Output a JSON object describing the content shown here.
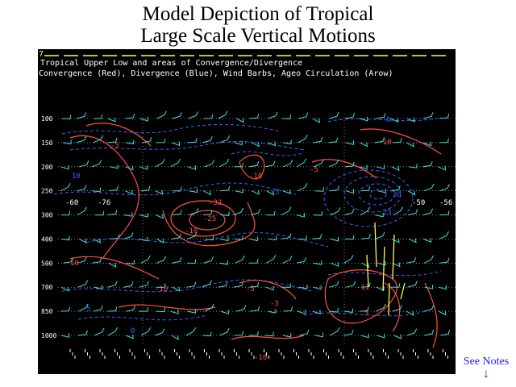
{
  "header": {
    "title_line1": "Model Depiction of Tropical",
    "title_line2": "Large Scale Vertical Motions"
  },
  "panel": {
    "frame_number": "7",
    "subtitle1": "Tropical Upper Low and areas of Convergence/Divergence",
    "subtitle2": "Convergence (Red), Divergence (Blue), Wind Barbs, Ageo Circulation (Arow)",
    "y_levels": [
      "100",
      "150",
      "200",
      "250",
      "300",
      "400",
      "500",
      "700",
      "850",
      "1000"
    ],
    "contour_labels": [
      {
        "text": "10",
        "color": "#4060ff"
      },
      {
        "text": "-5",
        "color": "#ff5040"
      },
      {
        "text": "-10",
        "color": "#ff5040"
      },
      {
        "text": "10",
        "color": "#ff5040"
      },
      {
        "text": "-5",
        "color": "#ff5040"
      },
      {
        "text": "-32",
        "color": "#ff5040"
      },
      {
        "text": "-25",
        "color": "#ff5040"
      },
      {
        "text": "-10",
        "color": "#ff5040"
      },
      {
        "text": "30",
        "color": "#4060ff"
      },
      {
        "text": "25",
        "color": "#4060ff"
      },
      {
        "text": "-50",
        "color": "#ffffff"
      },
      {
        "text": "-56",
        "color": "#ffffff"
      },
      {
        "text": "-60",
        "color": "#ffffff"
      },
      {
        "text": "-76",
        "color": "#ffffff"
      },
      {
        "text": "5",
        "color": "#4060ff"
      },
      {
        "text": "0",
        "color": "#4060ff"
      },
      {
        "text": "-10",
        "color": "#ff5040"
      },
      {
        "text": "-5",
        "color": "#ff5040"
      },
      {
        "text": "-3",
        "color": "#ff5040"
      },
      {
        "text": "10",
        "color": "#ff5040"
      },
      {
        "text": "-11",
        "color": "#ff5040"
      },
      {
        "text": "5",
        "color": "#ff5040"
      },
      {
        "text": "-10",
        "color": "#ff5040"
      },
      {
        "text": "0",
        "color": "#4060ff"
      },
      {
        "text": "5",
        "color": "#4060ff"
      }
    ]
  },
  "notes_link": {
    "label": "See Notes",
    "arrow": "↓"
  },
  "colors": {
    "convergence": "#ff5040",
    "divergence": "#4060ff",
    "wind_barbs": "#40e0e0",
    "ageo_arrows": "#ffff40",
    "grid": "#d0d0d0"
  }
}
